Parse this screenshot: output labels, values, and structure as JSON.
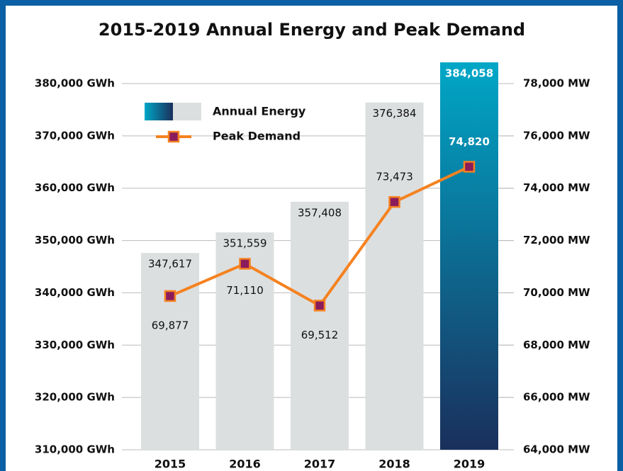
{
  "chart_data": {
    "type": "bar_line",
    "title": "2015-2019 Annual Energy and Peak Demand",
    "categories": [
      "2015",
      "2016",
      "2017",
      "2018",
      "2019"
    ],
    "series": [
      {
        "name": "Annual Energy",
        "type": "bar",
        "color": "#dcdfe0",
        "colors": [
          "#dcdfe0",
          "#dcdfe0",
          "#dcdfe0",
          "#dcdfe0",
          [
            "#00a7c7",
            "#1a2f5c"
          ]
        ],
        "values": [
          347617,
          351559,
          357408,
          376384,
          384058
        ],
        "value_labels": [
          "347,617",
          "351,559",
          "357,408",
          "376,384",
          "384,058"
        ]
      },
      {
        "name": "Peak Demand",
        "type": "line",
        "axis": "y2",
        "color": "#f58220",
        "marker_color": "#8b1c5c",
        "values": [
          69877,
          71110,
          69512,
          73473,
          74820
        ],
        "value_labels": [
          "69,877",
          "71,110",
          "69,512",
          "73,473",
          "74,820"
        ]
      }
    ],
    "ylim": [
      310000,
      380000
    ],
    "yticks": [
      {
        "value": 310000,
        "label": "310,000 GWh"
      },
      {
        "value": 320000,
        "label": "320,000 GWh"
      },
      {
        "value": 330000,
        "label": "330,000 GWh"
      },
      {
        "value": 340000,
        "label": "340,000 GWh"
      },
      {
        "value": 350000,
        "label": "350,000 GWh"
      },
      {
        "value": 360000,
        "label": "360,000 GWh"
      },
      {
        "value": 370000,
        "label": "370,000 GWh"
      },
      {
        "value": 380000,
        "label": "380,000 GWh"
      }
    ],
    "y2lim": [
      64000,
      78000
    ],
    "y2ticks": [
      {
        "value": 64000,
        "label": "64,000 MW"
      },
      {
        "value": 66000,
        "label": "66,000 MW"
      },
      {
        "value": 68000,
        "label": "68,000 MW"
      },
      {
        "value": 70000,
        "label": "70,000 MW"
      },
      {
        "value": 72000,
        "label": "72,000 MW"
      },
      {
        "value": 74000,
        "label": "74,000 MW"
      },
      {
        "value": 76000,
        "label": "76,000 MW"
      },
      {
        "value": 78000,
        "label": "78,000 MW"
      }
    ],
    "grid": true
  }
}
